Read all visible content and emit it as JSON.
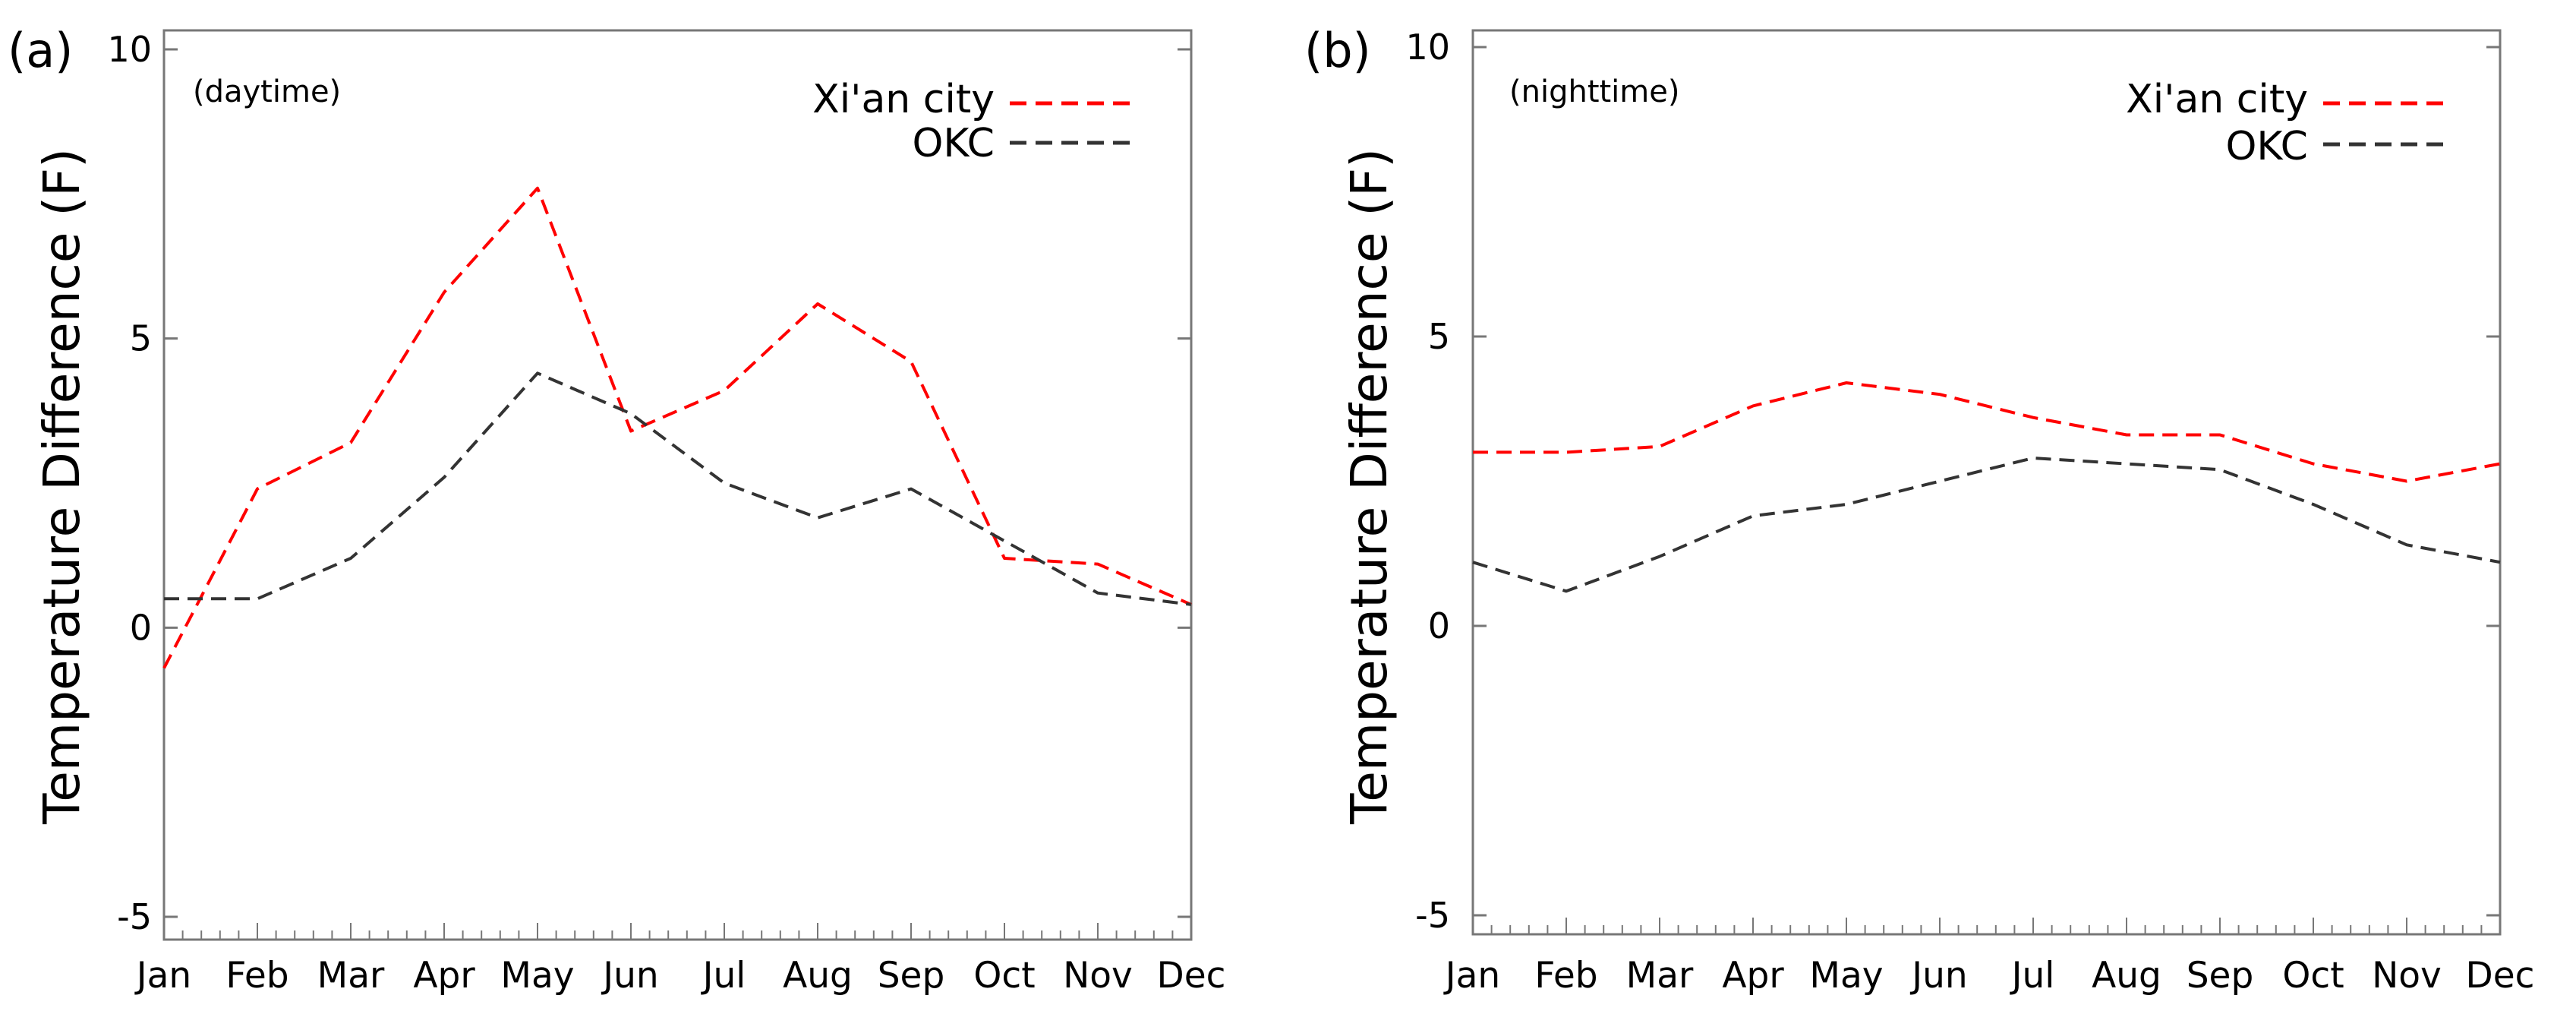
{
  "chart_data": [
    {
      "type": "line",
      "panel_label": "(a)",
      "inset_label": "(daytime)",
      "ylabel": "Temperature Difference (F)",
      "xlabel": "",
      "ylim": [
        -5,
        10
      ],
      "yticks": [
        "10",
        "5",
        "0",
        "-5"
      ],
      "yticks_values": [
        10,
        5,
        0,
        -5
      ],
      "categories": [
        "Jan",
        "Feb",
        "Mar",
        "Apr",
        "May",
        "Jun",
        "Jul",
        "Aug",
        "Sep",
        "Oct",
        "Nov",
        "Dec"
      ],
      "legend_position": "top-right",
      "series": [
        {
          "name": "Xi'an city",
          "color": "#ff0000",
          "values": [
            -0.7,
            2.4,
            3.2,
            5.8,
            7.6,
            3.4,
            4.1,
            5.6,
            4.6,
            1.2,
            1.1,
            0.4
          ]
        },
        {
          "name": "OKC",
          "color": "#333333",
          "values": [
            0.5,
            0.5,
            1.2,
            2.6,
            4.4,
            3.7,
            2.5,
            1.9,
            2.4,
            1.5,
            0.6,
            0.4
          ]
        }
      ]
    },
    {
      "type": "line",
      "panel_label": "(b)",
      "inset_label": "(nighttime)",
      "ylabel": "Temperature Difference (F)",
      "xlabel": "",
      "ylim": [
        -5,
        10
      ],
      "yticks": [
        "10",
        "5",
        "0",
        "-5"
      ],
      "yticks_values": [
        10,
        5,
        0,
        -5
      ],
      "categories": [
        "Jan",
        "Feb",
        "Mar",
        "Apr",
        "May",
        "Jun",
        "Jul",
        "Aug",
        "Sep",
        "Oct",
        "Nov",
        "Dec"
      ],
      "legend_position": "top-right",
      "series": [
        {
          "name": "Xi'an city",
          "color": "#ff0000",
          "values": [
            3.0,
            3.0,
            3.1,
            3.8,
            4.2,
            4.0,
            3.6,
            3.3,
            3.3,
            2.8,
            2.5,
            2.8
          ]
        },
        {
          "name": "OKC",
          "color": "#333333",
          "values": [
            1.1,
            0.6,
            1.2,
            1.9,
            2.1,
            2.5,
            2.9,
            2.8,
            2.7,
            2.1,
            1.4,
            1.1
          ]
        }
      ]
    }
  ]
}
